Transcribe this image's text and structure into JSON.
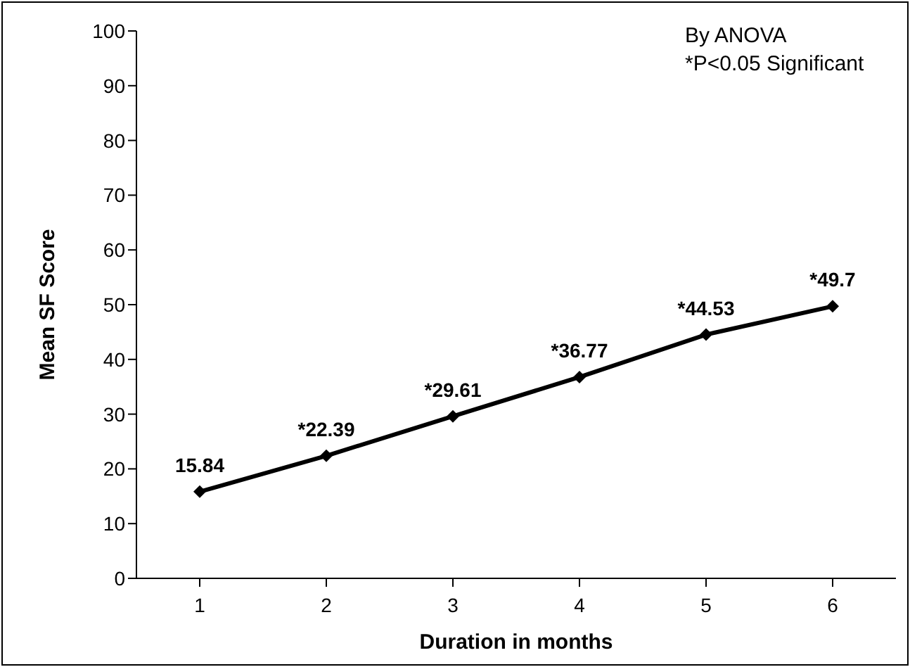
{
  "chart_data": {
    "type": "line",
    "xlabel": "Duration in months",
    "ylabel": "Mean SF Score",
    "categories": [
      "1",
      "2",
      "3",
      "4",
      "5",
      "6"
    ],
    "series": [
      {
        "color": "#000000",
        "values": [
          15.84,
          22.39,
          29.61,
          36.77,
          44.53,
          49.7
        ],
        "value_labels": [
          "15.84",
          "*22.39",
          "*29.61",
          "*36.77",
          "*44.53",
          "*49.7"
        ]
      }
    ],
    "ylim": [
      0,
      100
    ],
    "yticks": [
      0,
      10,
      20,
      30,
      40,
      50,
      60,
      70,
      80,
      90,
      100
    ],
    "grid": false,
    "legend": false,
    "marker": "diamond",
    "line_style": "solid",
    "annotations": [
      "By ANOVA",
      "*P<0.05 Significant"
    ]
  }
}
